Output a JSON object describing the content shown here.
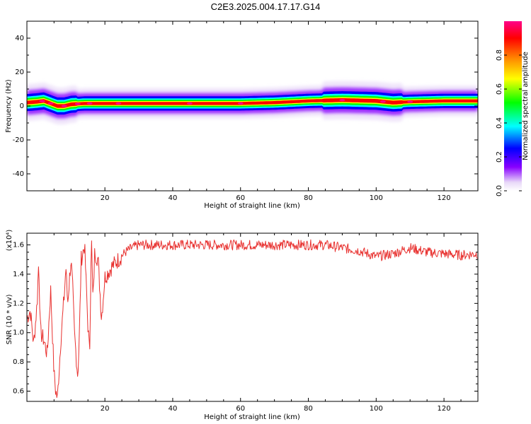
{
  "title": "C2E3.2025.004.17.17.G14",
  "chart_data": [
    {
      "type": "heatmap",
      "xlabel": "Height of straight line (km)",
      "ylabel": "Frequency (Hz)",
      "xlim": [
        -3,
        130
      ],
      "ylim": [
        -50,
        50
      ],
      "x_ticks": [
        "20",
        "40",
        "60",
        "80",
        "100",
        "120"
      ],
      "y_ticks": [
        "-40",
        "-20",
        "0",
        "20",
        "40"
      ],
      "colorbar": {
        "label": "Normalized spectral amplitude",
        "range": [
          0,
          1
        ],
        "ticks": [
          "0.0",
          "0.2",
          "0.4",
          "0.6",
          "0.8"
        ],
        "colors": [
          "#ffffff",
          "#e8d8f8",
          "#8800ff",
          "#0000ff",
          "#00ffff",
          "#00ff00",
          "#ffff00",
          "#ff8800",
          "#ff0000",
          "#ff0088"
        ]
      },
      "ridge": [
        {
          "x": -3,
          "y": 2.0
        },
        {
          "x": 0,
          "y": 2.5
        },
        {
          "x": 2,
          "y": 3.0
        },
        {
          "x": 4,
          "y": 1.5
        },
        {
          "x": 6,
          "y": 0.0
        },
        {
          "x": 8,
          "y": 0.0
        },
        {
          "x": 10,
          "y": 1.0
        },
        {
          "x": 14,
          "y": 1.5
        },
        {
          "x": 20,
          "y": 1.5
        },
        {
          "x": 30,
          "y": 1.5
        },
        {
          "x": 40,
          "y": 1.5
        },
        {
          "x": 50,
          "y": 1.5
        },
        {
          "x": 60,
          "y": 1.5
        },
        {
          "x": 70,
          "y": 2.0
        },
        {
          "x": 80,
          "y": 3.0
        },
        {
          "x": 90,
          "y": 3.5
        },
        {
          "x": 100,
          "y": 3.0
        },
        {
          "x": 105,
          "y": 2.0
        },
        {
          "x": 110,
          "y": 2.5
        },
        {
          "x": 120,
          "y": 3.0
        },
        {
          "x": 130,
          "y": 3.0
        }
      ]
    },
    {
      "type": "line",
      "xlabel": "Height of straight line (km)",
      "ylabel": "SNR (10 * v/v)",
      "y_multiplier": "(x10⁴)",
      "xlim": [
        -3,
        130
      ],
      "ylim": [
        0.53,
        1.68
      ],
      "x_ticks": [
        "20",
        "40",
        "60",
        "80",
        "100",
        "120"
      ],
      "y_ticks": [
        "0.6",
        "0.8",
        "1.0",
        "1.2",
        "1.4",
        "1.6"
      ],
      "color": "#e8312f",
      "series": [
        {
          "x": [
            -3,
            -2,
            -1,
            0,
            0.5,
            1,
            2,
            3,
            4,
            5,
            5.5,
            6,
            7,
            8,
            8.5,
            9,
            10,
            10.5,
            11,
            12,
            12.5,
            13,
            14,
            15,
            15.5,
            16,
            16.5,
            17,
            18,
            19,
            20,
            22,
            24,
            26,
            28,
            30,
            35,
            40,
            45,
            50,
            55,
            60,
            65,
            70,
            75,
            80,
            85,
            90,
            95,
            100,
            105,
            110,
            115,
            120,
            125,
            130
          ],
          "y": [
            1.1,
            1.15,
            0.92,
            1.2,
            1.5,
            1.0,
            0.95,
            0.85,
            1.3,
            0.72,
            0.6,
            0.55,
            0.95,
            1.25,
            1.45,
            1.2,
            1.5,
            1.3,
            1.0,
            0.7,
            1.0,
            1.5,
            1.6,
            1.05,
            0.85,
            1.68,
            1.2,
            1.55,
            1.5,
            1.1,
            1.38,
            1.45,
            1.5,
            1.55,
            1.58,
            1.6,
            1.6,
            1.6,
            1.6,
            1.6,
            1.6,
            1.6,
            1.6,
            1.6,
            1.6,
            1.6,
            1.6,
            1.58,
            1.56,
            1.52,
            1.54,
            1.58,
            1.55,
            1.54,
            1.53,
            1.54
          ]
        }
      ]
    }
  ]
}
